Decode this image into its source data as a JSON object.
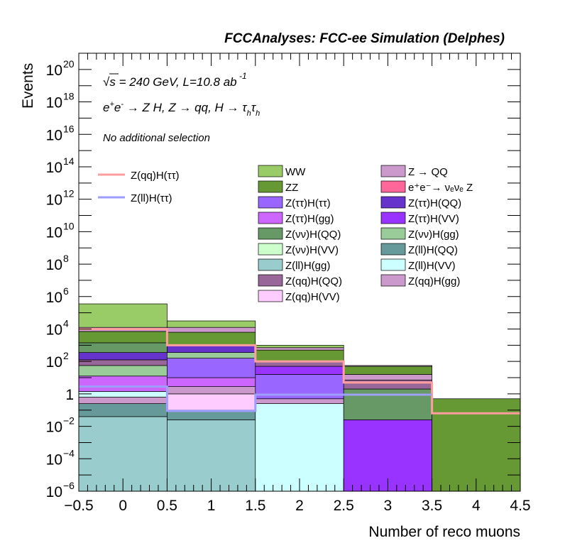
{
  "chart_data": {
    "type": "stacked-histogram",
    "title": "FCCAnalyses: FCC-ee Simulation (Delphes)",
    "xlabel": "Number of reco muons",
    "ylabel": "Events",
    "yscale": "log",
    "xlim": [
      -0.5,
      4.5
    ],
    "ylim_log10": [
      -6,
      21
    ],
    "x_ticks": [
      "−0.5",
      "0",
      "0.5",
      "1",
      "1.5",
      "2",
      "2.5",
      "3",
      "3.5",
      "4",
      "4.5"
    ],
    "y_ticks": [
      {
        "base": "10",
        "exp": "20",
        "exp10": 20
      },
      {
        "base": "10",
        "exp": "18",
        "exp10": 18
      },
      {
        "base": "10",
        "exp": "16",
        "exp10": 16
      },
      {
        "base": "10",
        "exp": "14",
        "exp10": 14
      },
      {
        "base": "10",
        "exp": "12",
        "exp10": 12
      },
      {
        "base": "10",
        "exp": "10",
        "exp10": 10
      },
      {
        "base": "10",
        "exp": "8",
        "exp10": 8
      },
      {
        "base": "10",
        "exp": "6",
        "exp10": 6
      },
      {
        "base": "10",
        "exp": "4",
        "exp10": 4
      },
      {
        "base": "10",
        "exp": "2",
        "exp10": 2
      },
      {
        "base": "1",
        "exp": "",
        "exp10": 0
      },
      {
        "base": "10",
        "exp": "−2",
        "exp10": -2
      },
      {
        "base": "10",
        "exp": "−4",
        "exp10": -4
      },
      {
        "base": "10",
        "exp": "−6",
        "exp10": -6
      }
    ],
    "annotations": {
      "energy": {
        "sqrt": "√s",
        "rest": " = 240 GeV, L=10.8 ab",
        "sup": " -1"
      },
      "process": {
        "a": "e",
        "a_sup": "+",
        "b": "e",
        "b_sup": "-",
        "mid": " → Z H, Z  → qq, H  →  τ",
        "tau_sub": "h",
        "tau2": "τ",
        "tau2_sub": "h"
      },
      "selection": "No additional selection"
    },
    "bin_edges": [
      -0.5,
      0.5,
      1.5,
      2.5,
      3.5,
      4.5
    ],
    "stack_log10_bottom_to_top": [
      [
        {
          "name": "Z(ll)H(gg)",
          "top": -1.4
        },
        {
          "name": "Z(ll)H(QQ)",
          "top": -0.6
        },
        {
          "name": "Z(qq)H(gg)",
          "top": -0.2
        },
        {
          "name": "Z(ll)H(VV)",
          "top": 0.15
        },
        {
          "name": "Z(ττ)H(gg)",
          "top": 1.1
        },
        {
          "name": "Z(νν)H(gg)",
          "top": 1.75
        },
        {
          "name": "Z(qq)H(QQ)",
          "top": 2.1
        },
        {
          "name": "Z(ττ)H(QQ)",
          "top": 2.55
        },
        {
          "name": "Z(νν)H(QQ)",
          "top": 3.15
        },
        {
          "name": "ZZ",
          "top": 3.85
        },
        {
          "name": "Z → QQ",
          "top": 4.1
        },
        {
          "name": "WW",
          "top": 5.55
        }
      ],
      [
        {
          "name": "Z(ll)H(gg)",
          "top": -1.6
        },
        {
          "name": "Z(ll)H(QQ)",
          "top": -1.0
        },
        {
          "name": "Z(qq)H(VV)",
          "top": 0.0
        },
        {
          "name": "Z(qq)H(gg)",
          "top": 0.45
        },
        {
          "name": "Z(ττ)H(gg)",
          "top": 1.0
        },
        {
          "name": "Z(ττ)H(ττ)",
          "top": 2.2
        },
        {
          "name": "Z(νν)H(gg)",
          "top": 2.55
        },
        {
          "name": "Z(ττ)H(QQ)",
          "top": 3.0
        },
        {
          "name": "ZZ",
          "top": 3.8
        },
        {
          "name": "Z → QQ",
          "top": 4.1
        },
        {
          "name": "WW",
          "top": 4.5
        }
      ],
      [
        {
          "name": "Z(ll)H(VV)",
          "top": -0.6
        },
        {
          "name": "Z(qq)H(gg)",
          "top": -0.3
        },
        {
          "name": "Z(ττ)H(ττ)",
          "top": 1.2
        },
        {
          "name": "Z(ττ)H(VV)",
          "top": 1.7
        },
        {
          "name": "Z(qq)H(QQ)",
          "top": 2.0
        },
        {
          "name": "ZZ",
          "top": 2.7
        },
        {
          "name": "Z → QQ",
          "top": 2.85
        },
        {
          "name": "WW",
          "top": 3.0
        }
      ],
      [
        {
          "name": "Z(ττ)H(VV)",
          "top": -1.6
        },
        {
          "name": "Z(νν)H(QQ)",
          "top": 0.3
        },
        {
          "name": "Z(qq)H(QQ)",
          "top": 0.85
        },
        {
          "name": "Z(qq)H(gg)",
          "top": 1.2
        },
        {
          "name": "ZZ",
          "top": 1.7
        },
        {
          "name": "Z → QQ",
          "top": 1.75
        }
      ],
      [
        {
          "name": "ZZ",
          "top": -0.3
        }
      ]
    ],
    "lines": [
      {
        "name": "Z(qq)H(ττ)",
        "color": "#ff9e9e",
        "log10_values": [
          4.0,
          3.0,
          2.0,
          0.7,
          -1.2
        ]
      },
      {
        "name": "Z(ll)H(ττ)",
        "color": "#9e9eff",
        "log10_values": [
          0.45,
          -1.05,
          -0.05,
          -0.05,
          null
        ]
      }
    ],
    "legend": {
      "lines": [
        {
          "label": "Z(qq)H(ττ)",
          "color": "#ff9e9e"
        },
        {
          "label": "Z(ll)H(ττ)",
          "color": "#9e9eff"
        }
      ],
      "col1": [
        {
          "label": "WW",
          "color": "#99cc66"
        },
        {
          "label": "ZZ",
          "color": "#669933"
        },
        {
          "label": "Z(ττ)H(ττ)",
          "color": "#9966ff"
        },
        {
          "label": "Z(ττ)H(gg)",
          "color": "#cc66ff"
        },
        {
          "label": "Z(νν)H(QQ)",
          "color": "#669966"
        },
        {
          "label": "Z(νν)H(VV)",
          "color": "#ccffcc"
        },
        {
          "label": "Z(ll)H(gg)",
          "color": "#99cccc"
        },
        {
          "label": "Z(qq)H(QQ)",
          "color": "#996699"
        },
        {
          "label": "Z(qq)H(VV)",
          "color": "#ffccff"
        }
      ],
      "col2": [
        {
          "label": "Z → QQ",
          "color": "#cc99cc"
        },
        {
          "label": "e⁺e⁻→ νₑνₑ Z",
          "color": "#ff6699"
        },
        {
          "label": "Z(ττ)H(QQ)",
          "color": "#6633cc"
        },
        {
          "label": "Z(ττ)H(VV)",
          "color": "#9933ff"
        },
        {
          "label": "Z(νν)H(gg)",
          "color": "#99cc99"
        },
        {
          "label": "Z(ll)H(QQ)",
          "color": "#669999"
        },
        {
          "label": "Z(ll)H(VV)",
          "color": "#ccffff"
        },
        {
          "label": "Z(qq)H(gg)",
          "color": "#cc99cc"
        }
      ]
    }
  }
}
